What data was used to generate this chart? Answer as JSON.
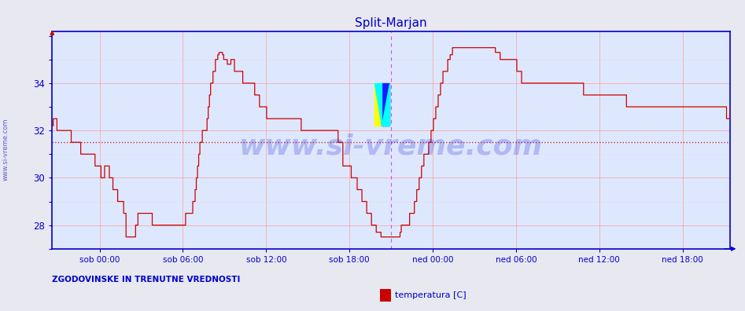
{
  "title": "Split-Marjan",
  "bg_color": "#e8e8f0",
  "plot_bg_color": "#dde8ff",
  "grid_color_major": "#ff9999",
  "grid_color_minor": "#ffcccc",
  "axis_color": "#0000cc",
  "title_color": "#0000cc",
  "line_color": "#cc0000",
  "line_color2": "#000000",
  "watermark": "www.si-vreme.com",
  "watermark_color": "#0000cc",
  "watermark_alpha": 0.2,
  "left_label": "www.si-vreme.com",
  "bottom_left_label": "ZGODOVINSKE IN TRENUTNE VREDNOSTI",
  "legend_label": "temperatura [C]",
  "legend_color": "#cc0000",
  "ylim": [
    27.0,
    36.2
  ],
  "yticks": [
    28,
    30,
    32,
    34
  ],
  "avg_line_y": 31.5,
  "vline_color": "#cc44cc",
  "vline_pos": 0.5,
  "x_tick_labels": [
    "sob 00:00",
    "sob 06:00",
    "sob 12:00",
    "sob 18:00",
    "ned 00:00",
    "ned 06:00",
    "ned 12:00",
    "ned 18:00"
  ],
  "x_tick_positions": [
    0.0833,
    0.25,
    0.4167,
    0.5833,
    0.75,
    0.9167,
    1.0417,
    1.1667
  ],
  "temperature_data": [
    32.2,
    32.5,
    32.5,
    32.5,
    32.0,
    32.0,
    32.0,
    32.0,
    32.0,
    32.0,
    32.0,
    32.0,
    32.0,
    32.0,
    32.0,
    32.0,
    31.5,
    31.5,
    31.5,
    31.5,
    31.5,
    31.5,
    31.5,
    31.5,
    31.0,
    31.0,
    31.0,
    31.0,
    31.0,
    31.0,
    31.0,
    31.0,
    31.0,
    31.0,
    31.0,
    31.0,
    30.5,
    30.5,
    30.5,
    30.5,
    30.5,
    30.0,
    30.0,
    30.0,
    30.5,
    30.5,
    30.5,
    30.5,
    30.0,
    30.0,
    30.0,
    29.5,
    29.5,
    29.5,
    29.5,
    29.0,
    29.0,
    29.0,
    29.0,
    29.0,
    28.5,
    28.5,
    27.5,
    27.5,
    27.5,
    27.5,
    27.5,
    27.5,
    27.5,
    27.5,
    28.0,
    28.0,
    28.5,
    28.5,
    28.5,
    28.5,
    28.5,
    28.5,
    28.5,
    28.5,
    28.5,
    28.5,
    28.5,
    28.5,
    28.0,
    28.0,
    28.0,
    28.0,
    28.0,
    28.0,
    28.0,
    28.0,
    28.0,
    28.0,
    28.0,
    28.0,
    28.0,
    28.0,
    28.0,
    28.0,
    28.0,
    28.0,
    28.0,
    28.0,
    28.0,
    28.0,
    28.0,
    28.0,
    28.0,
    28.0,
    28.0,
    28.0,
    28.5,
    28.5,
    28.5,
    28.5,
    28.5,
    28.5,
    29.0,
    29.0,
    29.5,
    30.0,
    30.5,
    31.0,
    31.5,
    31.5,
    32.0,
    32.0,
    32.0,
    32.0,
    32.5,
    33.0,
    33.5,
    34.0,
    34.0,
    34.5,
    34.5,
    35.0,
    35.0,
    35.2,
    35.3,
    35.3,
    35.3,
    35.2,
    35.0,
    35.0,
    35.0,
    34.8,
    34.8,
    34.8,
    35.0,
    35.0,
    35.0,
    34.5,
    34.5,
    34.5,
    34.5,
    34.5,
    34.5,
    34.5,
    34.0,
    34.0,
    34.0,
    34.0,
    34.0,
    34.0,
    34.0,
    34.0,
    34.0,
    34.0,
    33.5,
    33.5,
    33.5,
    33.5,
    33.0,
    33.0,
    33.0,
    33.0,
    33.0,
    33.0,
    32.5,
    32.5,
    32.5,
    32.5,
    32.5,
    32.5,
    32.5,
    32.5,
    32.5,
    32.5,
    32.5,
    32.5,
    32.5,
    32.5,
    32.5,
    32.5,
    32.5,
    32.5,
    32.5,
    32.5,
    32.5,
    32.5,
    32.5,
    32.5,
    32.5,
    32.5,
    32.5,
    32.5,
    32.5,
    32.0,
    32.0,
    32.0,
    32.0,
    32.0,
    32.0,
    32.0,
    32.0,
    32.0,
    32.0,
    32.0,
    32.0,
    32.0,
    32.0,
    32.0,
    32.0,
    32.0,
    32.0,
    32.0,
    32.0,
    32.0,
    32.0,
    32.0,
    32.0,
    32.0,
    32.0,
    32.0,
    32.0,
    32.0,
    32.0,
    32.0,
    31.5,
    31.5,
    31.5,
    31.5,
    30.5,
    30.5,
    30.5,
    30.5,
    30.5,
    30.5,
    30.5,
    30.0,
    30.0,
    30.0,
    30.0,
    30.0,
    29.5,
    29.5,
    29.5,
    29.5,
    29.0,
    29.0,
    29.0,
    29.0,
    28.5,
    28.5,
    28.5,
    28.5,
    28.0,
    28.0,
    28.0,
    28.0,
    27.7,
    27.7,
    27.7,
    27.7,
    27.5,
    27.5,
    27.5,
    27.5,
    27.5,
    27.5,
    27.5,
    27.5,
    27.5,
    27.5,
    27.5,
    27.5,
    27.5,
    27.5,
    27.5,
    27.5,
    27.7,
    28.0,
    28.0,
    28.0,
    28.0,
    28.0,
    28.0,
    28.0,
    28.5,
    28.5,
    28.5,
    28.5,
    29.0,
    29.0,
    29.5,
    29.5,
    30.0,
    30.0,
    30.5,
    30.5,
    31.0,
    31.0,
    31.0,
    31.0,
    31.5,
    31.5,
    32.0,
    32.0,
    32.5,
    32.5,
    33.0,
    33.0,
    33.5,
    33.5,
    34.0,
    34.0,
    34.5,
    34.5,
    34.5,
    34.5,
    35.0,
    35.0,
    35.2,
    35.2,
    35.5,
    35.5,
    35.5,
    35.5,
    35.5,
    35.5,
    35.5,
    35.5,
    35.5,
    35.5,
    35.5,
    35.5,
    35.5,
    35.5,
    35.5,
    35.5,
    35.5,
    35.5,
    35.5,
    35.5,
    35.5,
    35.5,
    35.5,
    35.5,
    35.5,
    35.5,
    35.5,
    35.5,
    35.5,
    35.5,
    35.5,
    35.5,
    35.5,
    35.5,
    35.5,
    35.5,
    35.3,
    35.3,
    35.3,
    35.3,
    35.0,
    35.0,
    35.0,
    35.0,
    35.0,
    35.0,
    35.0,
    35.0,
    35.0,
    35.0,
    35.0,
    35.0,
    35.0,
    35.0,
    34.5,
    34.5,
    34.5,
    34.5,
    34.0,
    34.0,
    34.0,
    34.0,
    34.0,
    34.0,
    34.0,
    34.0,
    34.0,
    34.0,
    34.0,
    34.0,
    34.0,
    34.0,
    34.0,
    34.0,
    34.0,
    34.0,
    34.0,
    34.0,
    34.0,
    34.0,
    34.0,
    34.0,
    34.0,
    34.0,
    34.0,
    34.0,
    34.0,
    34.0,
    34.0,
    34.0,
    34.0,
    34.0,
    34.0,
    34.0,
    34.0,
    34.0,
    34.0,
    34.0,
    34.0,
    34.0,
    34.0,
    34.0,
    34.0,
    34.0,
    34.0,
    34.0,
    34.0,
    34.0,
    34.0,
    34.0,
    33.5,
    33.5,
    33.5,
    33.5,
    33.5,
    33.5,
    33.5,
    33.5,
    33.5,
    33.5,
    33.5,
    33.5,
    33.5,
    33.5,
    33.5,
    33.5,
    33.5,
    33.5,
    33.5,
    33.5,
    33.5,
    33.5,
    33.5,
    33.5,
    33.5,
    33.5,
    33.5,
    33.5,
    33.5,
    33.5,
    33.5,
    33.5,
    33.5,
    33.5,
    33.5,
    33.5,
    33.0,
    33.0,
    33.0,
    33.0,
    33.0,
    33.0,
    33.0,
    33.0,
    33.0,
    33.0,
    33.0,
    33.0,
    33.0,
    33.0,
    33.0,
    33.0,
    33.0,
    33.0,
    33.0,
    33.0,
    33.0,
    33.0,
    33.0,
    33.0,
    33.0,
    33.0,
    33.0,
    33.0,
    33.0,
    33.0,
    33.0,
    33.0,
    33.0,
    33.0,
    33.0,
    33.0,
    33.0,
    33.0,
    33.0,
    33.0,
    33.0,
    33.0,
    33.0,
    33.0,
    33.0,
    33.0,
    33.0,
    33.0,
    33.0,
    33.0,
    33.0,
    33.0,
    33.0,
    33.0,
    33.0,
    33.0,
    33.0,
    33.0,
    33.0,
    33.0,
    33.0,
    33.0,
    33.0,
    33.0,
    33.0,
    33.0,
    33.0,
    33.0,
    33.0,
    33.0,
    33.0,
    33.0,
    33.0,
    33.0,
    33.0,
    33.0,
    33.0,
    33.0,
    33.0,
    33.0,
    33.0,
    33.0,
    33.0,
    33.0,
    32.5,
    32.5,
    32.5,
    33.0
  ]
}
